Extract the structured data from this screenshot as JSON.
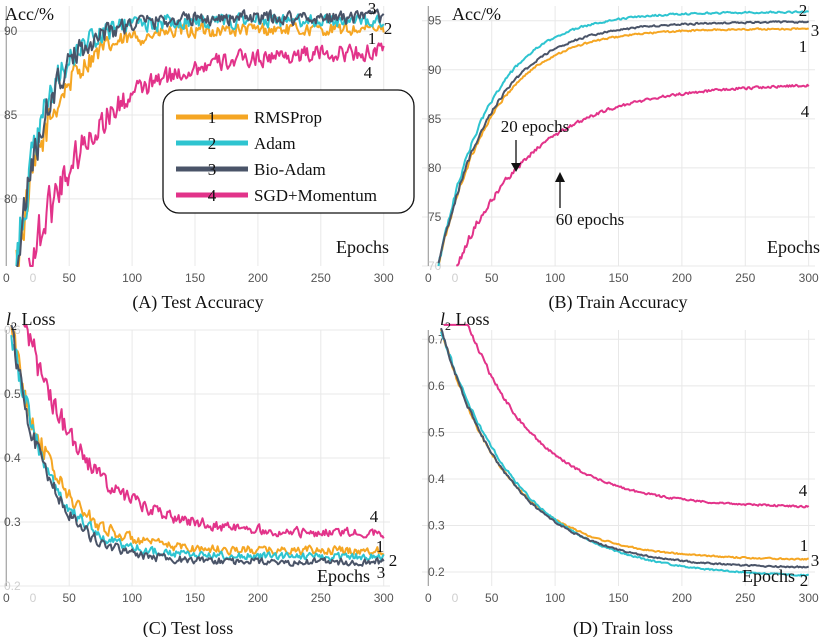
{
  "chart_data": [
    {
      "type": "line",
      "panel": "A",
      "caption": "(A) Test Accuracy",
      "ylabel": "Acc/%",
      "xlabel": "Epochs",
      "xlim": [
        -5,
        305
      ],
      "ylim": [
        76,
        91.5
      ],
      "xticks": [
        0,
        50,
        100,
        150,
        200,
        250,
        300
      ],
      "yticks": [
        80,
        85,
        90
      ],
      "tick_labels_y": [
        "80",
        "85",
        "90"
      ],
      "tick_labels_x": [
        "0",
        "50",
        "100",
        "150",
        "200",
        "250",
        "300"
      ],
      "grid": true,
      "legend": {
        "placement": "center-right",
        "entries": [
          {
            "num": "1",
            "label": "RMSProp"
          },
          {
            "num": "2",
            "label": "Adam"
          },
          {
            "num": "3",
            "label": "Bio-Adam"
          },
          {
            "num": "4",
            "label": "SGD+Momentum"
          }
        ]
      },
      "series": [
        {
          "name": "RMSProp",
          "id": "1",
          "color": "#f5a623",
          "start": 8,
          "y0": 76,
          "plateau": 90.1,
          "tau": 28,
          "noise": 0.35,
          "end_label": "1"
        },
        {
          "name": "Adam",
          "id": "2",
          "color": "#2ec4d0",
          "start": 8,
          "y0": 76,
          "plateau": 90.6,
          "tau": 23,
          "noise": 0.35,
          "end_label": "2"
        },
        {
          "name": "Bio-Adam",
          "id": "3",
          "color": "#4a5468",
          "start": 8,
          "y0": 76,
          "plateau": 90.8,
          "tau": 25,
          "noise": 0.35,
          "end_label": "3"
        },
        {
          "name": "SGD+Momentum",
          "id": "4",
          "color": "#e2338a",
          "start": 18,
          "y0": 76,
          "plateau": 88.8,
          "tau": 52,
          "noise": 0.45,
          "end_label": "4"
        }
      ]
    },
    {
      "type": "line",
      "panel": "B",
      "caption": "(B) Train Accuracy",
      "ylabel": "Acc/%",
      "xlabel": "Epochs",
      "xlim": [
        -5,
        305
      ],
      "ylim": [
        70,
        96.5
      ],
      "xticks": [
        0,
        50,
        100,
        150,
        200,
        250,
        300
      ],
      "yticks": [
        70,
        75,
        80,
        85,
        90,
        95
      ],
      "tick_labels_y": [
        "70",
        "75",
        "80",
        "85",
        "90",
        "95"
      ],
      "tick_labels_x": [
        "0",
        "50",
        "100",
        "150",
        "200",
        "250",
        "300"
      ],
      "grid": true,
      "annotations": [
        {
          "text": "20 epochs",
          "x": 20,
          "y": 80
        },
        {
          "text": "60 epochs",
          "x": 60,
          "y": 80
        }
      ],
      "series": [
        {
          "name": "RMSProp",
          "id": "1",
          "color": "#f5a623",
          "start": 8,
          "y0": 70,
          "plateau": 94.2,
          "tau": 42,
          "noise": 0.08,
          "end_label": "1"
        },
        {
          "name": "Adam",
          "id": "2",
          "color": "#2ec4d0",
          "start": 8,
          "y0": 70,
          "plateau": 95.9,
          "tau": 40,
          "noise": 0.08,
          "end_label": "2"
        },
        {
          "name": "Bio-Adam",
          "id": "3",
          "color": "#4a5468",
          "start": 8,
          "y0": 70,
          "plateau": 94.9,
          "tau": 42,
          "noise": 0.08,
          "end_label": "3"
        },
        {
          "name": "SGD+Momentum",
          "id": "4",
          "color": "#e2338a",
          "start": 22,
          "y0": 70,
          "plateau": 88.6,
          "tau": 62,
          "noise": 0.12,
          "end_label": "4"
        }
      ]
    },
    {
      "type": "line",
      "panel": "C",
      "caption": "(C) Test loss",
      "ylabel": "l2 Loss",
      "xlabel": "Epochs",
      "xlim": [
        -5,
        305
      ],
      "ylim": [
        0.2,
        0.6
      ],
      "xticks": [
        0,
        50,
        100,
        150,
        200,
        250,
        300
      ],
      "yticks": [
        0.2,
        0.3,
        0.4,
        0.5,
        0.6
      ],
      "tick_labels_y": [
        "0.2",
        "0.3",
        "0.4",
        "0.5",
        "0.6"
      ],
      "tick_labels_x": [
        "0",
        "50",
        "100",
        "150",
        "200",
        "250",
        "300"
      ],
      "grid": true,
      "series": [
        {
          "name": "RMSProp",
          "id": "1",
          "color": "#f5a623",
          "start": 4,
          "y0": 0.6,
          "plateau": 0.255,
          "tau": 33,
          "noise": 0.006,
          "end_label": "1"
        },
        {
          "name": "Adam",
          "id": "2",
          "color": "#2ec4d0",
          "start": 4,
          "y0": 0.6,
          "plateau": 0.246,
          "tau": 30,
          "noise": 0.005,
          "end_label": "2"
        },
        {
          "name": "Bio-Adam",
          "id": "3",
          "color": "#4a5468",
          "start": 4,
          "y0": 0.6,
          "plateau": 0.238,
          "tau": 29,
          "noise": 0.005,
          "end_label": "3"
        },
        {
          "name": "SGD+Momentum",
          "id": "4",
          "color": "#e2338a",
          "start": 14,
          "y0": 0.62,
          "plateau": 0.282,
          "tau": 46,
          "noise": 0.007,
          "end_label": "4"
        }
      ]
    },
    {
      "type": "line",
      "panel": "D",
      "caption": "(D) Train loss",
      "ylabel": "l2 Loss",
      "xlabel": "Epochs",
      "xlim": [
        -5,
        305
      ],
      "ylim": [
        0.17,
        0.72
      ],
      "xticks": [
        0,
        50,
        100,
        150,
        200,
        250,
        300
      ],
      "yticks": [
        0.2,
        0.3,
        0.4,
        0.5,
        0.6,
        0.7
      ],
      "tick_labels_y": [
        "0.2",
        "0.3",
        "0.4",
        "0.5",
        "0.6",
        "0.7"
      ],
      "tick_labels_x": [
        "0",
        "50",
        "100",
        "150",
        "200",
        "250",
        "300"
      ],
      "grid": true,
      "series": [
        {
          "name": "RMSProp",
          "id": "1",
          "color": "#f5a623",
          "start": 10,
          "y0": 0.72,
          "plateau": 0.226,
          "tau": 52,
          "noise": 0.0015,
          "end_label": "1"
        },
        {
          "name": "Adam",
          "id": "2",
          "color": "#2ec4d0",
          "start": 10,
          "y0": 0.72,
          "plateau": 0.188,
          "tau": 62,
          "noise": 0.0015,
          "end_label": "2"
        },
        {
          "name": "Bio-Adam",
          "id": "3",
          "color": "#4a5468",
          "start": 10,
          "y0": 0.72,
          "plateau": 0.208,
          "tau": 55,
          "noise": 0.0015,
          "end_label": "3"
        },
        {
          "name": "SGD+Momentum",
          "id": "4",
          "color": "#e2338a",
          "start": 12,
          "y0": 0.9,
          "plateau": 0.338,
          "tau": 55,
          "noise": 0.002,
          "end_label": "4"
        }
      ]
    }
  ]
}
